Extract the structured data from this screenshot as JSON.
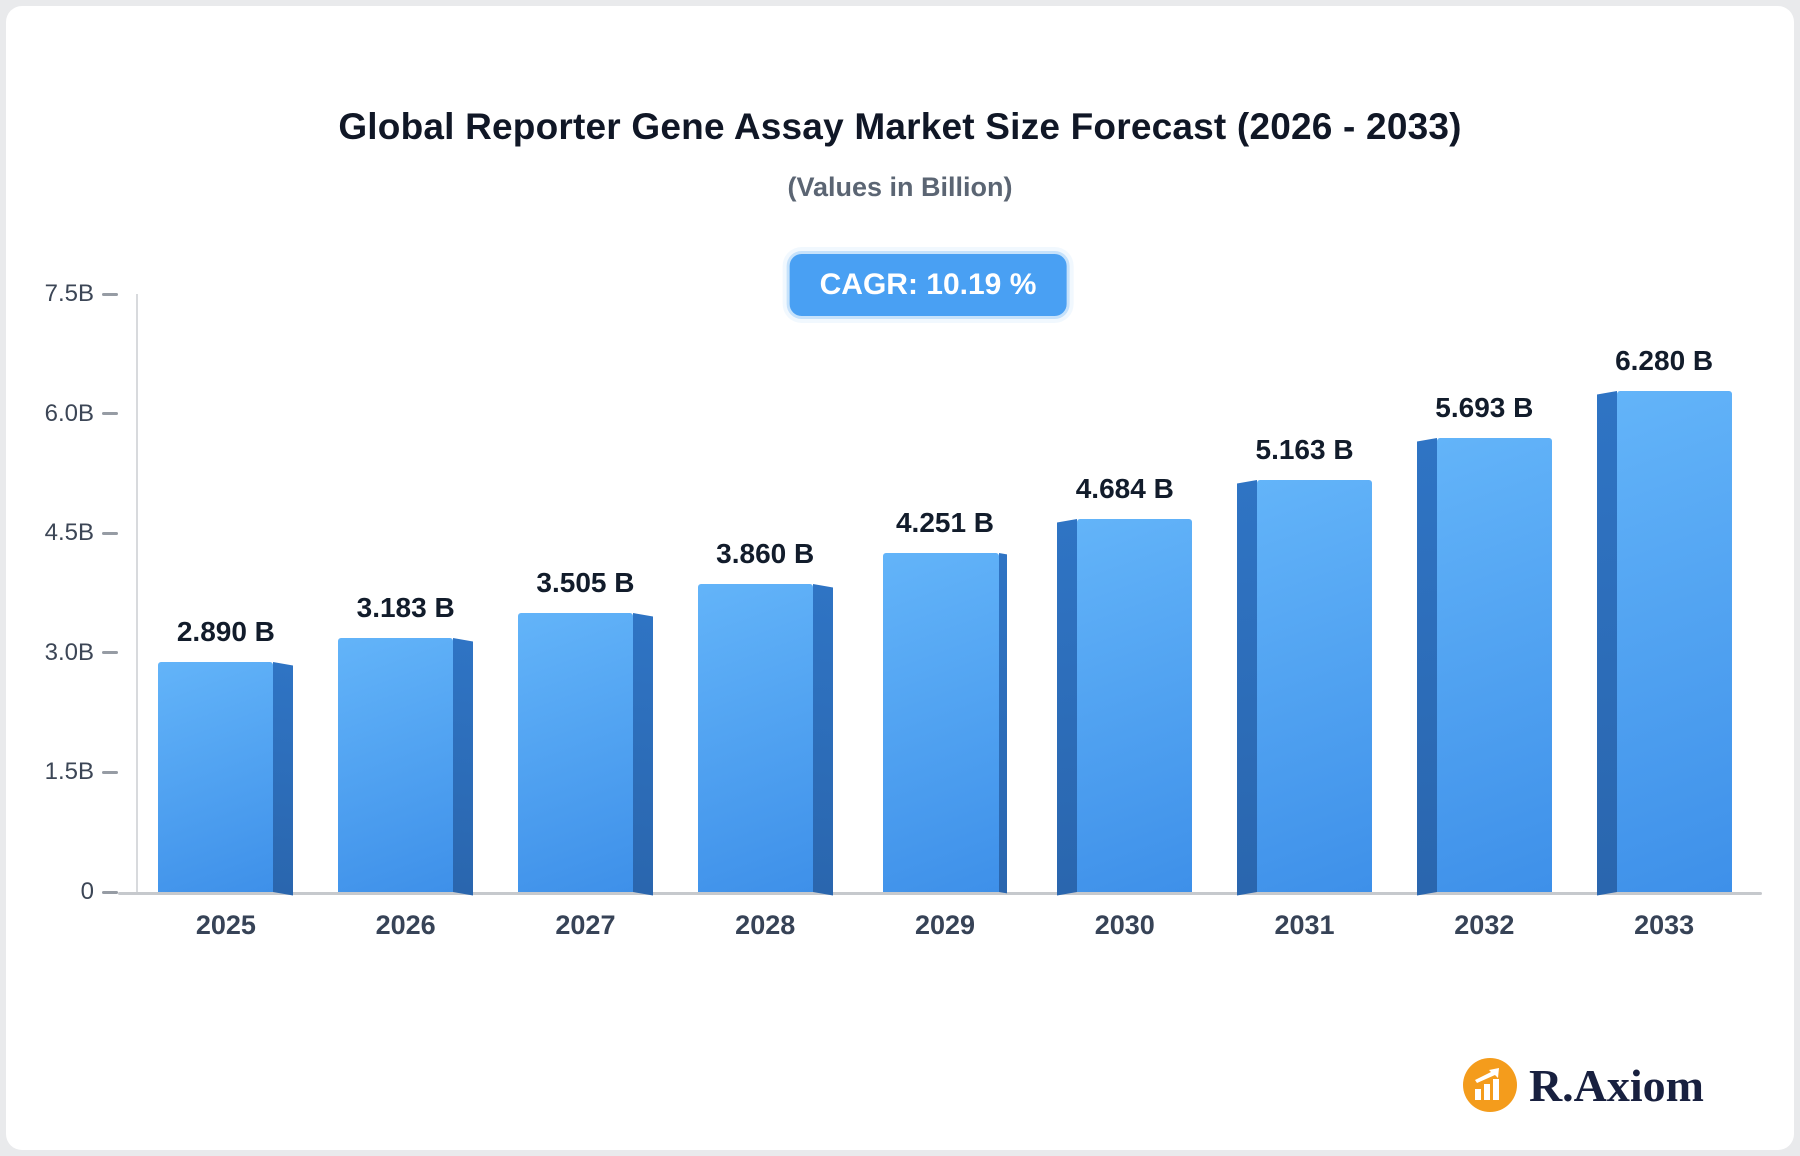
{
  "header": {
    "title": "Global Reporter Gene Assay Market Size Forecast (2026 - 2033)",
    "subtitle": "(Values in Billion)",
    "cagr_label": "CAGR: 10.19 %"
  },
  "brand": {
    "name": "R.Axiom",
    "icon": "bar-chart-icon",
    "icon_color": "#F49C1C",
    "text_color": "#18203F"
  },
  "chart_data": {
    "type": "bar",
    "title": "Global Reporter Gene Assay Market Size Forecast (2026 - 2033)",
    "subtitle": "(Values in Billion)",
    "cagr_percent": 10.19,
    "categories": [
      "2025",
      "2026",
      "2027",
      "2028",
      "2029",
      "2030",
      "2031",
      "2032",
      "2033"
    ],
    "values": [
      2.89,
      3.183,
      3.505,
      3.86,
      4.251,
      4.684,
      5.163,
      5.693,
      6.28
    ],
    "value_labels": [
      "2.890 B",
      "3.183 B",
      "3.505 B",
      "3.860 B",
      "4.251 B",
      "4.684 B",
      "5.163 B",
      "5.693 B",
      "6.280 B"
    ],
    "xlabel": "",
    "ylabel": "",
    "ylim": [
      0,
      7.5
    ],
    "yticks": [
      0,
      1.5,
      3.0,
      4.5,
      6.0,
      7.5
    ],
    "ytick_labels": [
      "0",
      "1.5B",
      "3.0B",
      "4.5B",
      "6.0B",
      "7.5B"
    ],
    "grid": "off",
    "legend": "none",
    "bar_front_top_color": "#63B4F9",
    "bar_front_bottom_color": "#3E90E9",
    "bar_side_color_top": "#2F74C4",
    "bar_side_color_bottom": "#2A66AE",
    "badge_color": "#49A0F3"
  }
}
